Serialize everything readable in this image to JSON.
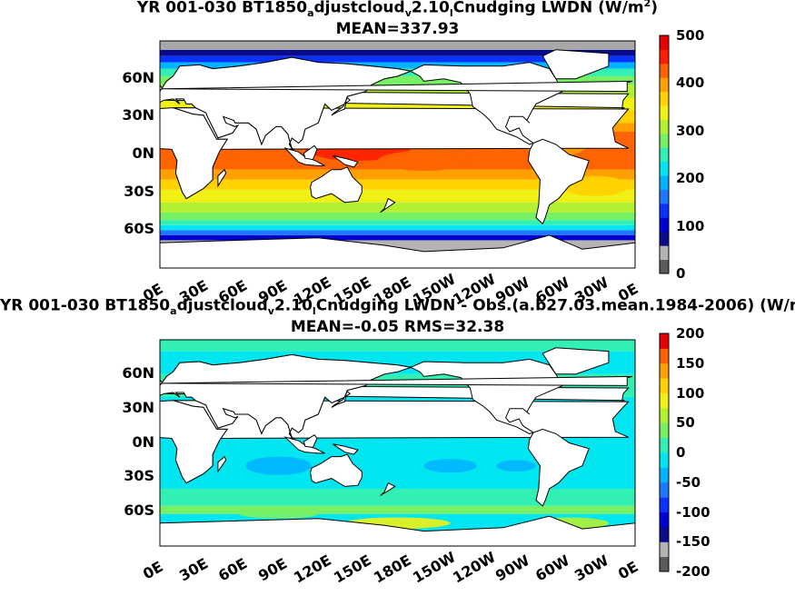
{
  "colors": {
    "levels": [
      "#5a5a5a",
      "#b4b4b4",
      "#0a0a8c",
      "#0000d2",
      "#0a32ff",
      "#1e78ff",
      "#00b4ff",
      "#00e6f0",
      "#32f0b4",
      "#78f064",
      "#b4f032",
      "#f0f014",
      "#ffd200",
      "#ffa000",
      "#ff6400",
      "#ff1e00",
      "#e60000"
    ],
    "land": "#ffffff",
    "ice": "#a8a8a8"
  },
  "panels": [
    {
      "title_parts": [
        "YR 001-030 BT1850",
        "a",
        "djustcloud",
        "v",
        "2.10",
        "l",
        "Cnudging LWDN (W/m",
        "2",
        ")"
      ],
      "subtitle": "MEAN=337.93",
      "cb_labels": [
        "500",
        "400",
        "300",
        "200",
        "100",
        "0"
      ]
    },
    {
      "title_parts": [
        "YR 001-030 BT1850",
        "a",
        "djustcloud",
        "v",
        "2.10",
        "l",
        "Cnudging LWDN - Obs.(a.b27.03.mean.1984-2006) (W/m",
        "2",
        ")"
      ],
      "subtitle": "MEAN=-0.05 RMS=32.38",
      "cb_labels": [
        "200",
        "150",
        "100",
        "50",
        "0",
        "-50",
        "-100",
        "-150",
        "-200"
      ]
    }
  ],
  "y_ticks": [
    "60N",
    "30N",
    "0N",
    "30S",
    "60S"
  ],
  "x_ticks": [
    "0E",
    "30E",
    "60E",
    "90E",
    "120E",
    "150E",
    "180E",
    "150W",
    "120W",
    "90W",
    "60W",
    "30W",
    "0E"
  ],
  "chart_data": [
    {
      "type": "heatmap",
      "title": "YR 001-030 BT1850adjustcloudv2.10lCnudging LWDN (W/m2)",
      "subtitle": "MEAN=337.93",
      "variable": "LWDN",
      "units": "W/m2",
      "mean": 337.93,
      "colorbar_range": [
        0,
        500
      ],
      "colorbar_ticks": [
        0,
        100,
        200,
        300,
        400,
        500
      ],
      "x_range": [
        "0E",
        "0E"
      ],
      "y_range": [
        "90S",
        "90N"
      ],
      "features": {
        "tropical_warm_pool_max": 420,
        "midlatitude_ocean": 300,
        "polar": 150
      }
    },
    {
      "type": "heatmap",
      "title": "YR 001-030 BT1850adjustcloudv2.10lCnudging LWDN - Obs.(a.b27.03.mean.1984-2006) (W/m2)",
      "subtitle": "MEAN=-0.05 RMS=32.38",
      "mean": -0.05,
      "rms": 32.38,
      "colorbar_range": [
        -200,
        200
      ],
      "colorbar_ticks": [
        -200,
        -150,
        -100,
        -50,
        0,
        50,
        100,
        150,
        200
      ],
      "x_range": [
        "0E",
        "0E"
      ],
      "y_range": [
        "90S",
        "90N"
      ]
    }
  ]
}
